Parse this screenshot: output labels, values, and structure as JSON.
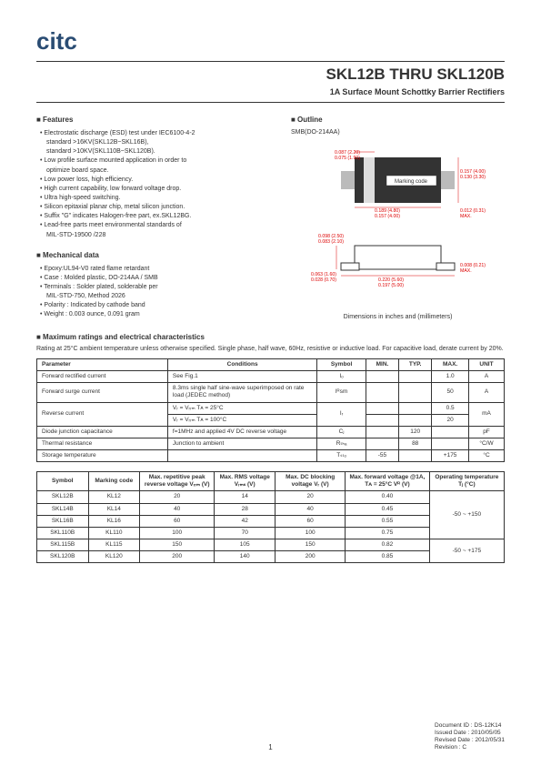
{
  "logo": "citc",
  "title": "SKL12B THRU SKL120B",
  "subtitle": "1A Surface Mount Schottky Barrier Rectifiers",
  "features": {
    "heading": "■ Features",
    "items": [
      {
        "t": "Electrostatic discharge (ESD) test under IEC6100-4-2",
        "cls": "main"
      },
      {
        "t": "standard >16KV(SKL12B~SKL16B),",
        "cls": "sub"
      },
      {
        "t": "standard >10KV(SKL110B~SKL120B).",
        "cls": "sub"
      },
      {
        "t": "Low profile surface mounted application in order to",
        "cls": "main"
      },
      {
        "t": "optimize board space.",
        "cls": "sub"
      },
      {
        "t": "Low power loss, high efficiency.",
        "cls": "main"
      },
      {
        "t": "High current capability, low forward voltage drop.",
        "cls": "main"
      },
      {
        "t": "Ultra high-speed switching.",
        "cls": "main"
      },
      {
        "t": "Silicon epitaxial planar chip, metal silicon junction.",
        "cls": "main"
      },
      {
        "t": "Suffix \"G\" indicates Halogen-free part, ex.SKL12BG.",
        "cls": "main"
      },
      {
        "t": "Lead-free parts meet environmental standards of",
        "cls": "main"
      },
      {
        "t": "MIL-STD-19500 /228",
        "cls": "sub"
      }
    ]
  },
  "mechanical": {
    "heading": "■ Mechanical data",
    "items": [
      {
        "t": "Epoxy:UL94-V0 rated flame retardant",
        "cls": "main"
      },
      {
        "t": "Case : Molded plastic,  DO-214AA / SMB",
        "cls": "main"
      },
      {
        "t": "Terminals : Solder plated, solderable per",
        "cls": "main"
      },
      {
        "t": "MIL-STD-750, Method 2026",
        "cls": "sub"
      },
      {
        "t": "Polarity : Indicated by cathode band",
        "cls": "main"
      },
      {
        "t": "Weight : 0.003 ounce,  0.091 gram",
        "cls": "main"
      }
    ]
  },
  "outline": {
    "heading": "■ Outline",
    "pkg": "SMB(DO-214AA)",
    "marking": "Marking code",
    "dims": {
      "d1a": "0.087 (2.20)",
      "d1b": "0.075 (1.90)",
      "d2a": "0.157 (4.00)",
      "d2b": "0.130 (3.30)",
      "d3a": "0.189 (4.80)",
      "d3b": "0.157 (4.00)",
      "d4a": "0.012 (0.31)",
      "d4b": "MAX.",
      "d5a": "0.098 (2.50)",
      "d5b": "0.083 (2.10)",
      "d6a": "0.063 (1.60)",
      "d6b": "0.028 (0.70)",
      "d7a": "0.008 (0.21)",
      "d7b": "MAX.",
      "d8a": "0.220 (5.60)",
      "d8b": "0.197 (5.00)"
    },
    "caption": "Dimensions in inches and (millimeters)"
  },
  "ratings": {
    "heading": "■ Maximum ratings and electrical characteristics",
    "note": "Rating at 25°C ambient  temperature  unless  otherwise  specified. Single phase, half wave, 60Hz, resistive or inductive load. For capacitive load, derate current by 20%.",
    "t1": {
      "headers": [
        "Parameter",
        "Conditions",
        "Symbol",
        "MIN.",
        "TYP.",
        "MAX.",
        "UNIT"
      ],
      "rows": [
        {
          "p": "Forward rectified current",
          "c": "See Fig.1",
          "s": "Iₒ",
          "min": "",
          "typ": "",
          "max": "1.0",
          "u": "A"
        },
        {
          "p": "Forward surge current",
          "c": "8.3ms single half sine-wave superimposed on rate load (JEDEC method)",
          "s": "Iᴿsm",
          "min": "",
          "typ": "",
          "max": "50",
          "u": "A"
        },
        {
          "p": "Reverse current",
          "c": "Vᵣ = Vᵣᵣₘ Tᴀ = 25°C",
          "s": "Iᵣ",
          "min": "",
          "typ": "",
          "max": "0.5",
          "u": "mA",
          "rowspan": 2
        },
        {
          "p": "",
          "c": "Vᵣ = Vᵣᵣₘ Tᴀ = 100°C",
          "s": "",
          "min": "",
          "typ": "",
          "max": "20",
          "u": ""
        },
        {
          "p": "Diode junction capacitance",
          "c": "f=1MHz and applied 4V DC reverse voltage",
          "s": "Cⱼ",
          "min": "",
          "typ": "120",
          "max": "",
          "u": "pF"
        },
        {
          "p": "Thermal resistance",
          "c": "Junction to ambient",
          "s": "Rₜₕₐ",
          "min": "",
          "typ": "88",
          "max": "",
          "u": "°C/W"
        },
        {
          "p": "Storage temperature",
          "c": "",
          "s": "Tₛₜₒ",
          "min": "-55",
          "typ": "",
          "max": "+175",
          "u": "°C"
        }
      ]
    },
    "t2": {
      "headers": [
        "Symbol",
        "Marking code",
        "Max. repetitive peak reverse voltage Vᵣᵣₘ (V)",
        "Max. RMS voltage Vᵣₘₛ (V)",
        "Max. DC blocking voltage Vᵣ (V)",
        "Max. forward voltage @1A, Tᴀ = 25°C Vᴿ (V)",
        "Operating temperature Tⱼ (°C)"
      ],
      "rows": [
        [
          "SKL12B",
          "KL12",
          "20",
          "14",
          "20",
          "0.40"
        ],
        [
          "SKL14B",
          "KL14",
          "40",
          "28",
          "40",
          "0.45"
        ],
        [
          "SKL16B",
          "KL16",
          "60",
          "42",
          "60",
          "0.55"
        ],
        [
          "SKL110B",
          "KL110",
          "100",
          "70",
          "100",
          "0.75"
        ],
        [
          "SKL115B",
          "KL115",
          "150",
          "105",
          "150",
          "0.82"
        ],
        [
          "SKL120B",
          "KL120",
          "200",
          "140",
          "200",
          "0.85"
        ]
      ],
      "temp1": "-50 ~ +150",
      "temp2": "-50 ~ +175"
    }
  },
  "footer": {
    "doc": "Document ID : DS-12K14",
    "issued": "Issued Date : 2010/05/05",
    "revised": "Revised Date : 2012/05/31",
    "rev": "Revision : C"
  },
  "page_num": "1"
}
